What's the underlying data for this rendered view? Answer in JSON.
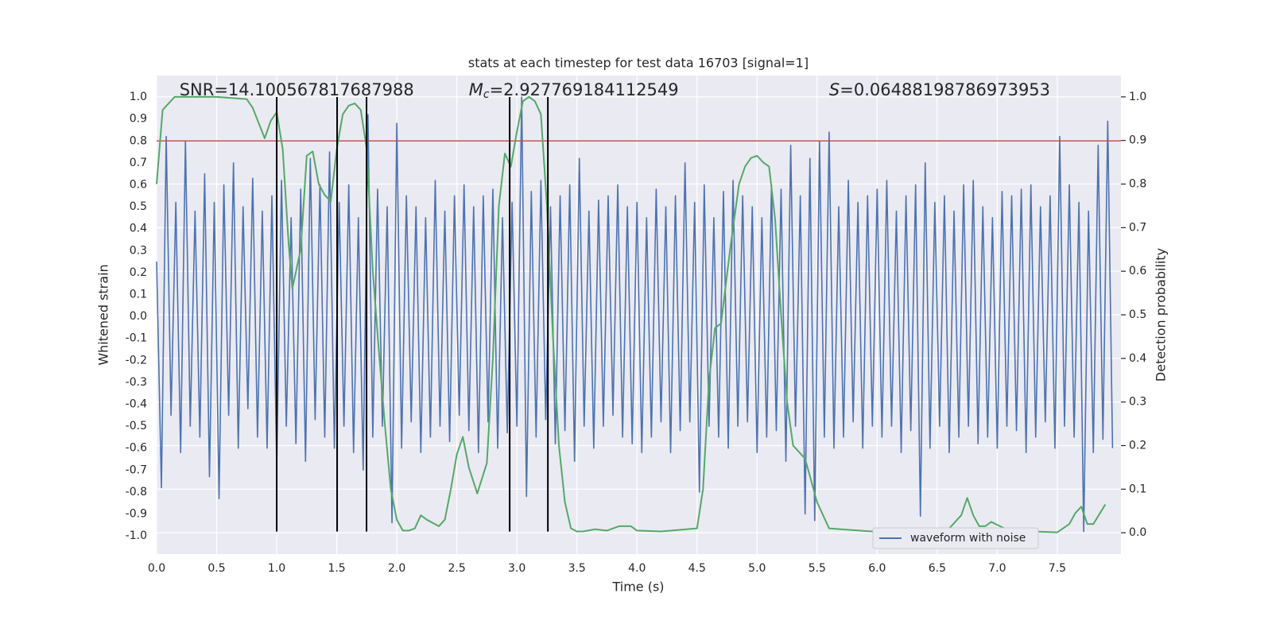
{
  "chart_data": {
    "type": "line",
    "title": "stats at each timestep for test data 16703 [signal=1]",
    "xlabel": "Time (s)",
    "ylabel": "Whitened strain",
    "y2label": "Detection probability",
    "xlim": [
      0,
      8.03
    ],
    "ylim": [
      -1.083,
      1.098
    ],
    "y2lim": [
      -0.049,
      1.049
    ],
    "xticks": [
      {
        "value": 0,
        "label": "0.0"
      },
      0.5,
      {
        "value": 1,
        "label": "1.0"
      },
      1.5,
      {
        "value": 2,
        "label": "2.0"
      },
      2.5,
      {
        "value": 3,
        "label": "3.0"
      },
      3.5,
      {
        "value": 4,
        "label": "4.0"
      },
      4.5,
      {
        "value": 5,
        "label": "5.0"
      },
      5.5,
      {
        "value": 6,
        "label": "6.0"
      },
      6.5,
      {
        "value": 7,
        "label": "7.0"
      },
      7.5
    ],
    "yticks": [
      {
        "value": -1,
        "label": "-1.0"
      },
      -0.9,
      -0.8,
      -0.7,
      -0.6,
      -0.5,
      -0.4,
      -0.3,
      -0.2,
      -0.1,
      {
        "value": 0,
        "label": "0.0"
      },
      0.1,
      0.2,
      0.3,
      0.4,
      0.5,
      0.6,
      0.7,
      0.8,
      0.9,
      {
        "value": 1,
        "label": "1.0"
      }
    ],
    "y2ticks": [
      {
        "value": 0,
        "label": "0.0"
      },
      0.1,
      0.2,
      0.3,
      0.4,
      0.5,
      0.6,
      0.7,
      0.8,
      0.9,
      {
        "value": 1,
        "label": "1.0"
      }
    ],
    "grid": true,
    "background": "#eaeaf2",
    "legend": "lower right",
    "series": [
      {
        "name": "waveform with noise",
        "color": "#4c72b0",
        "x": [
          0,
          0.04,
          0.08,
          0.12,
          0.16,
          0.2,
          0.24,
          0.28,
          0.32,
          0.36,
          0.4,
          0.44,
          0.48,
          0.52,
          0.56,
          0.6,
          0.64,
          0.68,
          0.72,
          0.76,
          0.8,
          0.84,
          0.88,
          0.92,
          0.96,
          1,
          1.04,
          1.08,
          1.12,
          1.16,
          1.2,
          1.24,
          1.28,
          1.32,
          1.36,
          1.4,
          1.44,
          1.48,
          1.52,
          1.56,
          1.6,
          1.64,
          1.68,
          1.72,
          1.76,
          1.8,
          1.84,
          1.88,
          1.92,
          1.96,
          2,
          2.04,
          2.08,
          2.12,
          2.16,
          2.2,
          2.24,
          2.28,
          2.32,
          2.36,
          2.4,
          2.44,
          2.48,
          2.52,
          2.56,
          2.6,
          2.64,
          2.68,
          2.72,
          2.76,
          2.8,
          2.84,
          2.88,
          2.92,
          2.96,
          3,
          3.04,
          3.08,
          3.12,
          3.16,
          3.2,
          3.24,
          3.28,
          3.32,
          3.36,
          3.4,
          3.44,
          3.48,
          3.52,
          3.56,
          3.6,
          3.64,
          3.68,
          3.72,
          3.76,
          3.8,
          3.84,
          3.88,
          3.92,
          3.96,
          4,
          4.04,
          4.08,
          4.12,
          4.16,
          4.2,
          4.24,
          4.28,
          4.32,
          4.36,
          4.4,
          4.44,
          4.48,
          4.52,
          4.56,
          4.6,
          4.64,
          4.68,
          4.72,
          4.76,
          4.8,
          4.84,
          4.88,
          4.92,
          4.96,
          5,
          5.04,
          5.08,
          5.12,
          5.16,
          5.2,
          5.24,
          5.28,
          5.32,
          5.36,
          5.4,
          5.44,
          5.48,
          5.52,
          5.56,
          5.6,
          5.64,
          5.68,
          5.72,
          5.76,
          5.8,
          5.84,
          5.88,
          5.92,
          5.96,
          6,
          6.04,
          6.08,
          6.12,
          6.16,
          6.2,
          6.24,
          6.28,
          6.32,
          6.36,
          6.4,
          6.44,
          6.48,
          6.52,
          6.56,
          6.6,
          6.64,
          6.68,
          6.72,
          6.76,
          6.8,
          6.84,
          6.88,
          6.92,
          6.96,
          7,
          7.04,
          7.08,
          7.12,
          7.16,
          7.2,
          7.24,
          7.28,
          7.32,
          7.36,
          7.4,
          7.44,
          7.48,
          7.52,
          7.56,
          7.6,
          7.64,
          7.68,
          7.72,
          7.76,
          7.8,
          7.84,
          7.88,
          7.92,
          7.96
        ],
        "values": [
          0.25,
          -0.78,
          0.82,
          -0.45,
          0.52,
          -0.62,
          0.8,
          -0.5,
          0.48,
          -0.55,
          0.65,
          -0.73,
          0.52,
          -0.83,
          0.6,
          -0.45,
          0.7,
          -0.6,
          0.5,
          -0.42,
          0.63,
          -0.55,
          0.48,
          -0.6,
          0.55,
          -0.68,
          0.62,
          -0.5,
          0.45,
          -0.58,
          0.58,
          -0.66,
          0.72,
          -0.47,
          0.6,
          -0.55,
          0.75,
          -0.6,
          0.52,
          -0.5,
          0.6,
          -0.62,
          0.45,
          -0.7,
          0.92,
          -0.55,
          0.58,
          -0.5,
          0.5,
          -0.94,
          0.88,
          -0.6,
          0.55,
          -0.48,
          0.5,
          -0.62,
          0.45,
          -0.55,
          0.62,
          -0.5,
          0.48,
          -0.57,
          0.55,
          -0.45,
          0.6,
          -0.52,
          0.5,
          -0.62,
          0.55,
          -0.48,
          0.58,
          -0.6,
          0.45,
          -0.53,
          0.52,
          -0.5,
          1.0,
          -0.82,
          0.57,
          -0.55,
          0.62,
          -0.47,
          0.5,
          -0.58,
          0.55,
          -0.52,
          0.6,
          -0.66,
          0.72,
          -0.5,
          0.48,
          -0.6,
          0.53,
          -0.5,
          0.55,
          -0.45,
          0.6,
          -0.55,
          0.5,
          -0.58,
          0.52,
          -0.62,
          0.45,
          -0.55,
          0.58,
          -0.48,
          0.5,
          -0.62,
          0.55,
          -0.52,
          0.7,
          -0.48,
          0.52,
          -0.8,
          0.6,
          -0.5,
          0.45,
          -0.55,
          0.57,
          -0.6,
          0.62,
          -0.5,
          0.55,
          -0.48,
          0.5,
          -0.62,
          0.45,
          -0.55,
          0.6,
          -0.52,
          0.58,
          -0.66,
          0.78,
          -0.5,
          0.55,
          -0.9,
          0.72,
          -0.93,
          0.8,
          -0.55,
          0.84,
          -0.6,
          0.5,
          -0.55,
          0.62,
          -0.48,
          0.52,
          -0.6,
          0.55,
          -0.5,
          0.58,
          -0.55,
          0.62,
          -0.5,
          0.48,
          -0.62,
          0.55,
          -0.52,
          0.6,
          -0.91,
          0.7,
          -0.6,
          0.52,
          -0.5,
          0.55,
          -0.62,
          0.48,
          -0.55,
          0.6,
          -0.5,
          0.62,
          -0.58,
          0.5,
          -0.55,
          0.45,
          -0.6,
          0.57,
          -0.5,
          0.55,
          -0.52,
          0.58,
          -0.62,
          0.6,
          -0.55,
          0.5,
          -0.48,
          0.55,
          -0.6,
          0.82,
          -0.5,
          0.6,
          -0.55,
          0.52,
          -0.98,
          0.48,
          -0.62,
          0.78,
          -0.56,
          0.89,
          -0.6
        ]
      },
      {
        "color": "#55a868",
        "axis": "y2",
        "x": [
          0,
          0.05,
          0.1,
          0.15,
          0.3,
          0.5,
          0.75,
          0.8,
          0.85,
          0.9,
          0.95,
          1.0,
          1.05,
          1.1,
          1.13,
          1.2,
          1.25,
          1.3,
          1.35,
          1.4,
          1.45,
          1.5,
          1.55,
          1.6,
          1.65,
          1.7,
          1.75,
          1.8,
          1.85,
          1.9,
          1.95,
          2.0,
          2.05,
          2.1,
          2.15,
          2.2,
          2.25,
          2.35,
          2.4,
          2.45,
          2.5,
          2.55,
          2.6,
          2.67,
          2.75,
          2.8,
          2.85,
          2.9,
          2.95,
          3.0,
          3.05,
          3.1,
          3.15,
          3.2,
          3.25,
          3.3,
          3.35,
          3.4,
          3.45,
          3.5,
          3.55,
          3.65,
          3.75,
          3.85,
          3.95,
          4.0,
          4.2,
          4.5,
          4.55,
          4.6,
          4.65,
          4.7,
          4.78,
          4.85,
          4.9,
          4.95,
          5.0,
          5.05,
          5.1,
          5.15,
          5.2,
          5.25,
          5.3,
          5.4,
          5.5,
          5.6,
          5.7,
          6.0,
          6.5,
          6.6,
          6.7,
          6.75,
          6.8,
          6.85,
          6.9,
          6.95,
          7.0,
          7.1,
          7.5,
          7.6,
          7.65,
          7.7,
          7.75,
          7.8,
          7.9
        ],
        "values": [
          0.8,
          0.97,
          0.985,
          1.0,
          1.0,
          1.0,
          0.995,
          0.975,
          0.94,
          0.905,
          0.945,
          0.965,
          0.88,
          0.66,
          0.56,
          0.65,
          0.865,
          0.875,
          0.8,
          0.775,
          0.76,
          0.88,
          0.96,
          0.98,
          0.985,
          0.97,
          0.88,
          0.6,
          0.42,
          0.25,
          0.1,
          0.03,
          0.005,
          0.005,
          0.01,
          0.04,
          0.03,
          0.015,
          0.03,
          0.1,
          0.18,
          0.22,
          0.15,
          0.09,
          0.16,
          0.4,
          0.75,
          0.87,
          0.84,
          0.92,
          0.99,
          1.0,
          0.99,
          0.96,
          0.75,
          0.45,
          0.2,
          0.07,
          0.01,
          0.003,
          0.003,
          0.008,
          0.005,
          0.015,
          0.015,
          0.005,
          0.003,
          0.01,
          0.1,
          0.35,
          0.47,
          0.48,
          0.66,
          0.8,
          0.84,
          0.86,
          0.865,
          0.85,
          0.84,
          0.72,
          0.5,
          0.3,
          0.2,
          0.17,
          0.07,
          0.01,
          0.008,
          0.002,
          0.003,
          0.01,
          0.04,
          0.08,
          0.04,
          0.015,
          0.015,
          0.025,
          0.018,
          0.005,
          0.001,
          0.02,
          0.045,
          0.06,
          0.02,
          0.02,
          0.065
        ]
      }
    ],
    "hline": {
      "y": 0.8,
      "color": "#c44e52"
    },
    "vlines": {
      "x": [
        1.0,
        1.503,
        1.748,
        2.94,
        3.258
      ],
      "ymin": -0.98,
      "ymax": 1.0,
      "color": "#000000"
    },
    "annotations": [
      {
        "text": "SNR=14.100567817687988",
        "x": 0.19,
        "y": 1.03
      },
      {
        "symbol": "M",
        "subscript": "c",
        "text": "=2.927769184112549",
        "x": 2.6,
        "y": 1.03
      },
      {
        "symbol": "S",
        "text": "=0.06488198786973953",
        "x": 5.6,
        "y": 1.03
      }
    ]
  }
}
